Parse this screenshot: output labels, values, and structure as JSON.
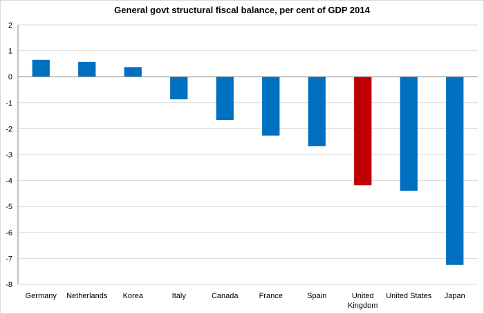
{
  "chart_data": {
    "type": "bar",
    "title": "General govt structural fiscal balance, per cent of GDP 2014",
    "xlabel": "",
    "ylabel": "",
    "categories": [
      "Germany",
      "Netherlands",
      "Korea",
      "Italy",
      "Canada",
      "France",
      "Spain",
      "United Kingdom",
      "United States",
      "Japan"
    ],
    "category_lines": [
      [
        "Germany"
      ],
      [
        "Netherlands"
      ],
      [
        "Korea"
      ],
      [
        "Italy"
      ],
      [
        "Canada"
      ],
      [
        "France"
      ],
      [
        "Spain"
      ],
      [
        "United",
        "Kingdom"
      ],
      [
        "United States"
      ],
      [
        "Japan"
      ]
    ],
    "values": [
      0.65,
      0.57,
      0.37,
      -0.87,
      -1.67,
      -2.27,
      -2.68,
      -4.18,
      -4.4,
      -7.25
    ],
    "ylim": [
      -8,
      2
    ],
    "yticks": [
      2,
      1,
      0,
      -1,
      -2,
      -3,
      -4,
      -5,
      -6,
      -7,
      -8
    ],
    "grid": true,
    "legend": "none",
    "colors": {
      "default": "#0070C0",
      "highlight": "#C00000",
      "highlight_category": "United Kingdom",
      "grid": "#d9d9d9",
      "axis": "#868686"
    }
  }
}
